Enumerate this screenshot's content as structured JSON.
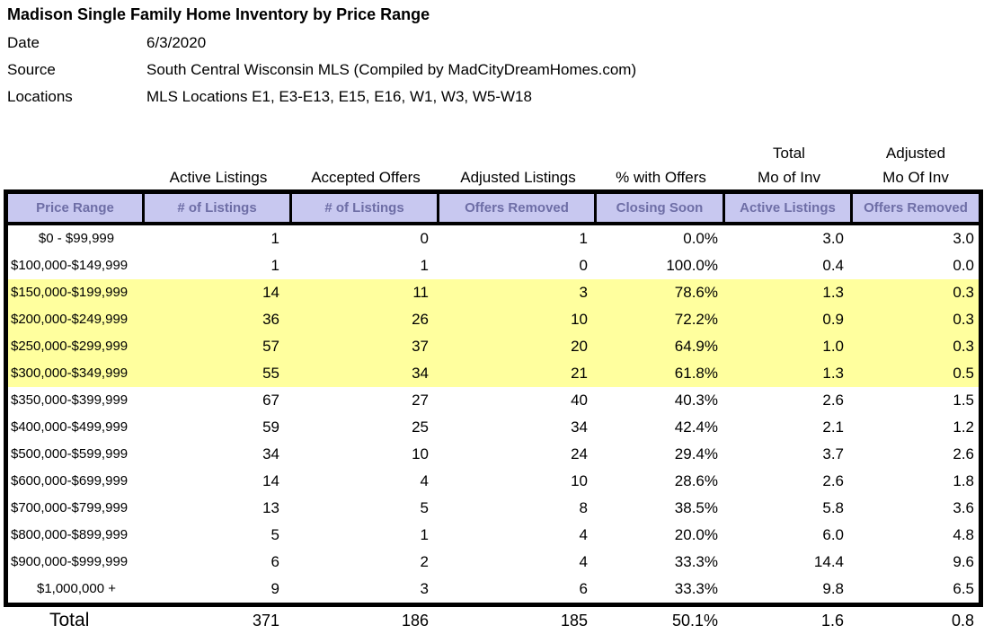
{
  "page": {
    "title": "Madison Single Family Home Inventory by Price Range",
    "meta": [
      {
        "label": "Date",
        "value": "6/3/2020"
      },
      {
        "label": "Source",
        "value": "South Central Wisconsin MLS (Compiled by MadCityDreamHomes.com)"
      },
      {
        "label": "Locations",
        "value": "MLS Locations E1, E3-E13, E15, E16, W1, W3, W5-W18"
      }
    ]
  },
  "table": {
    "group_headers": [
      {
        "line1": "",
        "line2": ""
      },
      {
        "line1": "",
        "line2": "Active Listings"
      },
      {
        "line1": "",
        "line2": "Accepted Offers"
      },
      {
        "line1": "",
        "line2": "Adjusted Listings"
      },
      {
        "line1": "",
        "line2": "% with Offers"
      },
      {
        "line1": "Total",
        "line2": "Mo of Inv"
      },
      {
        "line1": "Adjusted",
        "line2": "Mo Of Inv"
      }
    ],
    "columns": [
      "Price Range",
      "# of Listings",
      "# of Listings",
      "Offers Removed",
      "Closing Soon",
      "Active Listings",
      "Offers Removed"
    ],
    "rows": [
      {
        "price": "$0 - $99,999",
        "price_class": "center",
        "active": "1",
        "accepted": "0",
        "adjusted": "1",
        "pct": "0.0%",
        "total_moi": "3.0",
        "adj_moi": "3.0"
      },
      {
        "price": "$100,000-$149,999",
        "active": "1",
        "accepted": "1",
        "adjusted": "0",
        "pct": "100.0%",
        "total_moi": "0.4",
        "adj_moi": "0.0"
      },
      {
        "price": "$150,000-$199,999",
        "row_class": "hl",
        "active": "14",
        "accepted": "11",
        "adjusted": "3",
        "pct": "78.6%",
        "total_moi": "1.3",
        "adj_moi": "0.3"
      },
      {
        "price": "$200,000-$249,999",
        "row_class": "hl",
        "active": "36",
        "accepted": "26",
        "adjusted": "10",
        "pct": "72.2%",
        "total_moi": "0.9",
        "adj_moi": "0.3"
      },
      {
        "price": "$250,000-$299,999",
        "row_class": "hl",
        "active": "57",
        "accepted": "37",
        "adjusted": "20",
        "pct": "64.9%",
        "total_moi": "1.0",
        "adj_moi": "0.3"
      },
      {
        "price": "$300,000-$349,999",
        "row_class": "hl",
        "active": "55",
        "accepted": "34",
        "adjusted": "21",
        "pct": "61.8%",
        "total_moi": "1.3",
        "adj_moi": "0.5"
      },
      {
        "price": "$350,000-$399,999",
        "active": "67",
        "accepted": "27",
        "adjusted": "40",
        "pct": "40.3%",
        "total_moi": "2.6",
        "adj_moi": "1.5"
      },
      {
        "price": "$400,000-$499,999",
        "active": "59",
        "accepted": "25",
        "adjusted": "34",
        "pct": "42.4%",
        "total_moi": "2.1",
        "adj_moi": "1.2"
      },
      {
        "price": "$500,000-$599,999",
        "active": "34",
        "accepted": "10",
        "adjusted": "24",
        "pct": "29.4%",
        "total_moi": "3.7",
        "adj_moi": "2.6"
      },
      {
        "price": "$600,000-$699,999",
        "active": "14",
        "accepted": "4",
        "adjusted": "10",
        "pct": "28.6%",
        "total_moi": "2.6",
        "adj_moi": "1.8"
      },
      {
        "price": "$700,000-$799,999",
        "active": "13",
        "accepted": "5",
        "adjusted": "8",
        "pct": "38.5%",
        "total_moi": "5.8",
        "adj_moi": "3.6"
      },
      {
        "price": "$800,000-$899,999",
        "active": "5",
        "accepted": "1",
        "adjusted": "4",
        "pct": "20.0%",
        "total_moi": "6.0",
        "adj_moi": "4.8"
      },
      {
        "price": "$900,000-$999,999",
        "active": "6",
        "accepted": "2",
        "adjusted": "4",
        "pct": "33.3%",
        "total_moi": "14.4",
        "adj_moi": "9.6"
      },
      {
        "price": "$1,000,000 +",
        "price_class": "center",
        "active": "9",
        "accepted": "3",
        "adjusted": "6",
        "pct": "33.3%",
        "total_moi": "9.8",
        "adj_moi": "6.5"
      }
    ],
    "total": {
      "label": "Total",
      "active": "371",
      "accepted": "186",
      "adjusted": "185",
      "pct": "50.1%",
      "total_moi": "1.6",
      "adj_moi": "0.8"
    }
  },
  "colors": {
    "header_bg": "#c8c8f0",
    "header_text": "#6e6ea6",
    "highlight_row": "#ffff9e",
    "table_border": "#000000"
  }
}
